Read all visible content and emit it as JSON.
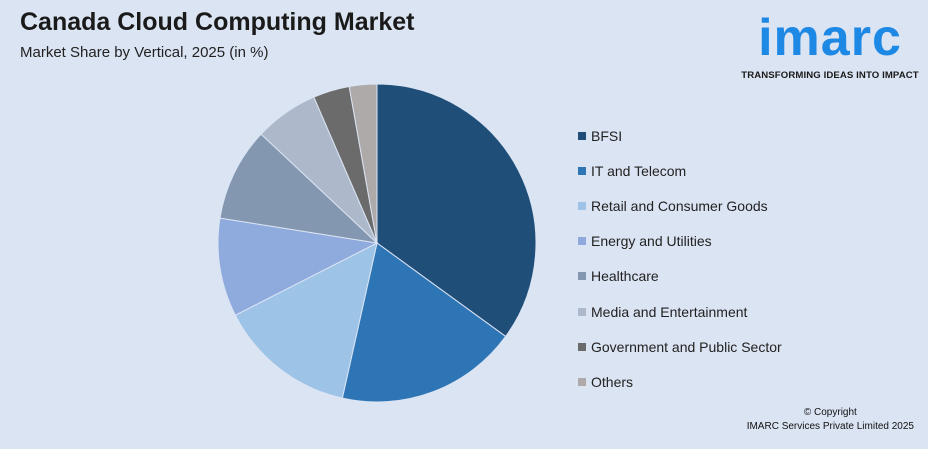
{
  "header": {
    "title": "Canada Cloud Computing Market",
    "subtitle": "Market Share by Vertical, 2025 (in %)"
  },
  "logo": {
    "word": "imarc",
    "tagline": "TRANSFORMING IDEAS INTO IMPACT",
    "color": "#1e88e5"
  },
  "chart_data": {
    "type": "pie",
    "title": "Canada Cloud Computing Market",
    "subtitle": "Market Share by Vertical, 2025 (in %)",
    "legend_position": "right",
    "slices": [
      {
        "label": "BFSI",
        "value": 35,
        "color": "#1f4e79"
      },
      {
        "label": "IT and Telecom",
        "value": 18.5,
        "color": "#2e75b6"
      },
      {
        "label": "Retail and Consumer Goods",
        "value": 14,
        "color": "#9dc3e6"
      },
      {
        "label": "Energy and Utilities",
        "value": 10,
        "color": "#8faadc"
      },
      {
        "label": "Healthcare",
        "value": 9.5,
        "color": "#8497b0"
      },
      {
        "label": "Media and Entertainment",
        "value": 6.5,
        "color": "#adb9ca"
      },
      {
        "label": "Government and Public Sector",
        "value": 3.7,
        "color": "#6b6b6b"
      },
      {
        "label": "Others",
        "value": 2.8,
        "color": "#aeaaaa"
      }
    ]
  },
  "footer": {
    "copyright": "© Copyright",
    "company": "IMARC Services Private Limited 2025"
  }
}
